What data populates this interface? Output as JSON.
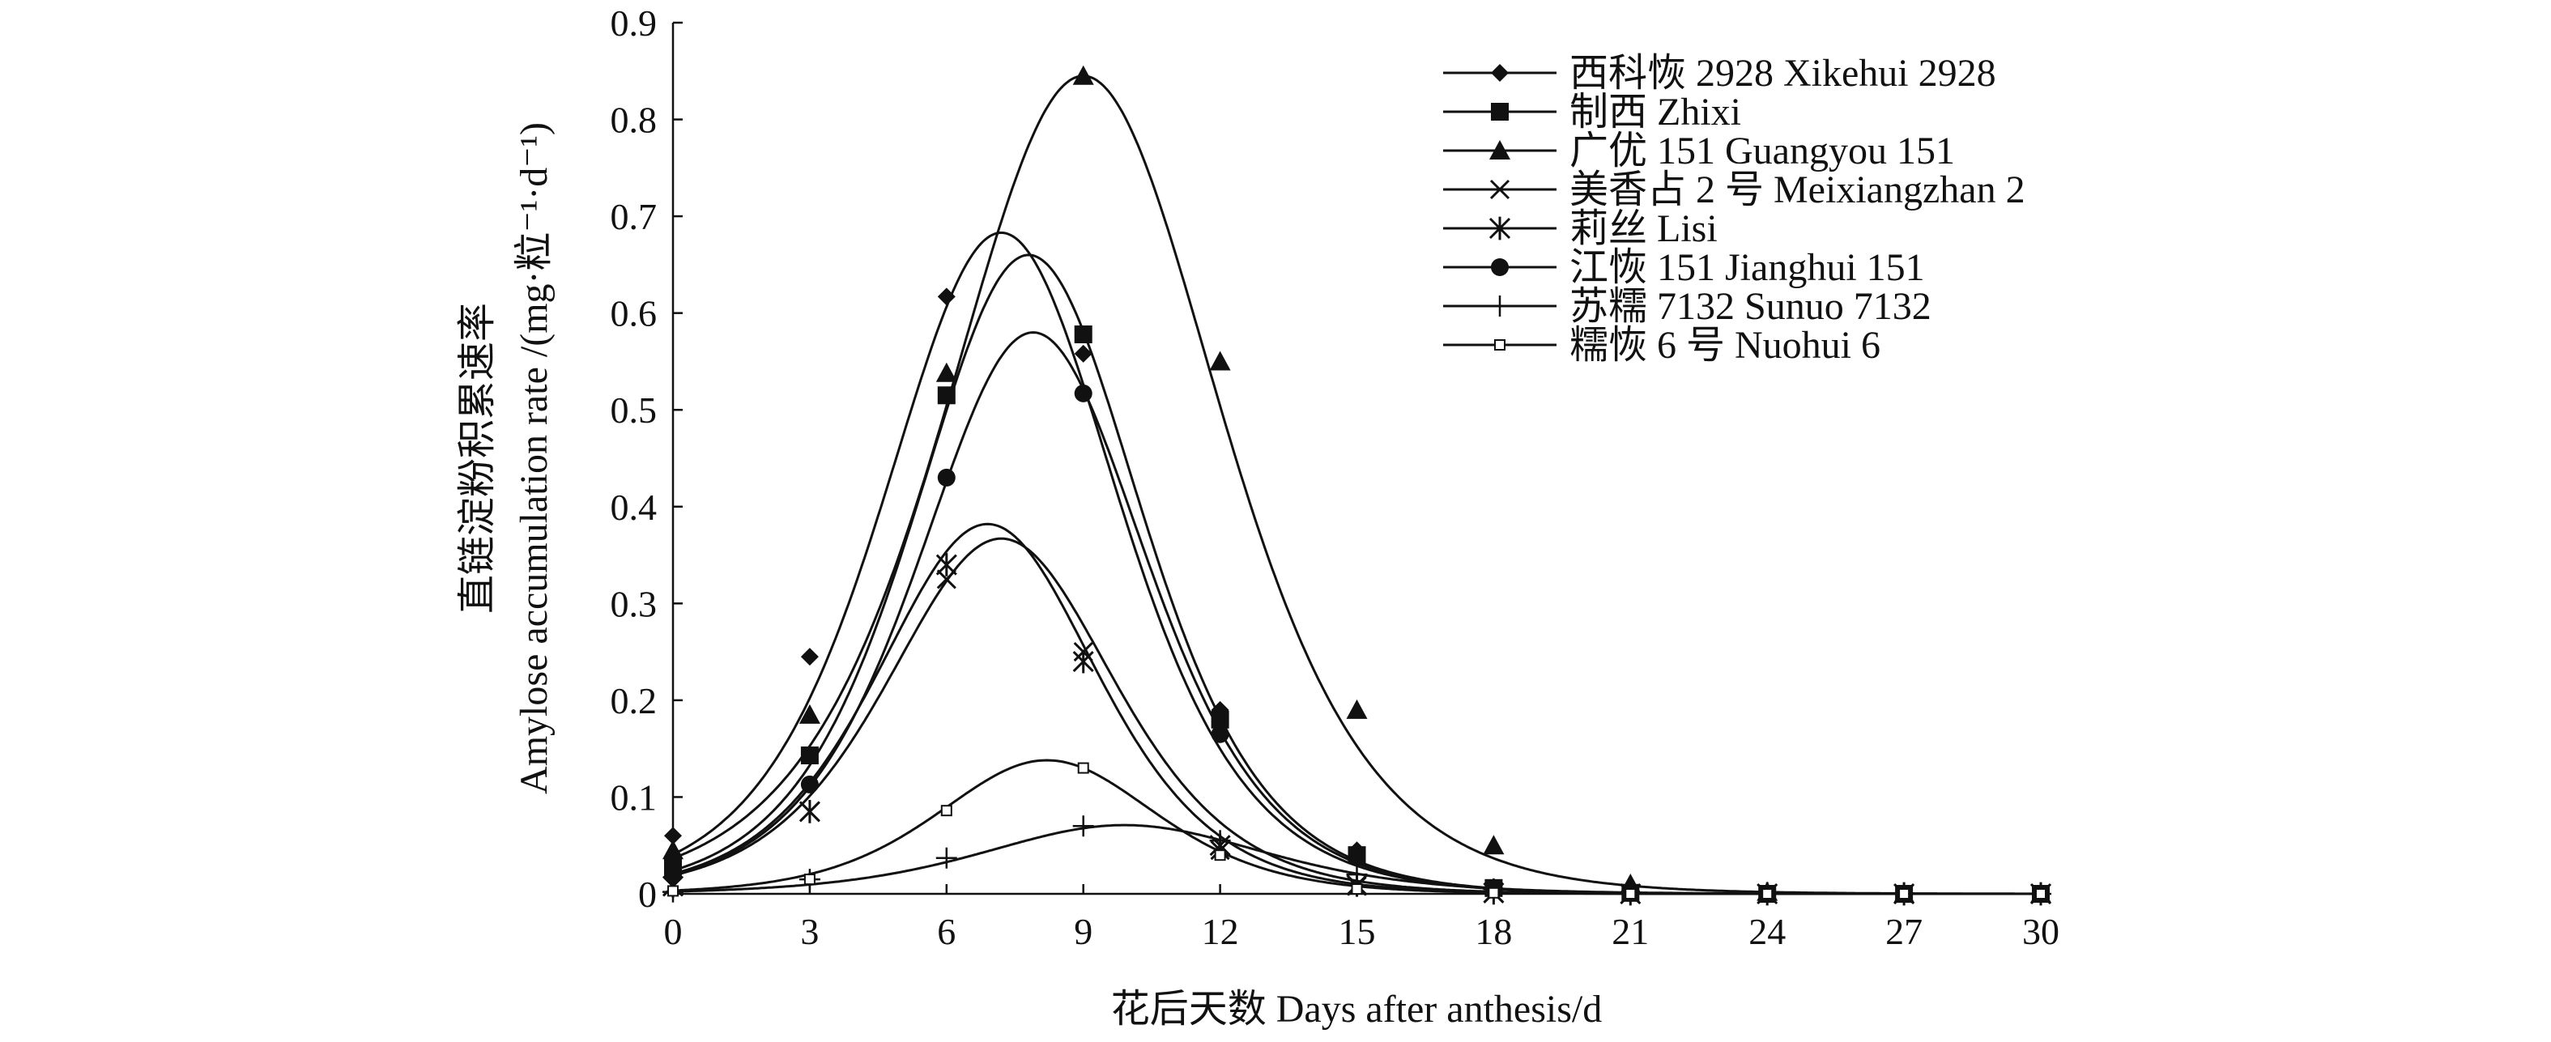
{
  "chart_data": {
    "type": "line",
    "xlabel": "花后天数 Days after anthesis/d",
    "ylabel_line1": "直链淀粉积累速率",
    "ylabel_line2": "Amylose accumulation rate /(mg·粒⁻¹·d⁻¹)",
    "xlim": [
      0,
      30
    ],
    "ylim": [
      0,
      0.9
    ],
    "xticks": [
      0,
      3,
      6,
      9,
      12,
      15,
      18,
      21,
      24,
      27,
      30
    ],
    "yticks": [
      0,
      0.1,
      0.2,
      0.3,
      0.4,
      0.5,
      0.6,
      0.7,
      0.8,
      0.9
    ],
    "ytick_labels": [
      "0",
      "0.1",
      "0.2",
      "0.3",
      "0.4",
      "0.5",
      "0.6",
      "0.7",
      "0.8",
      "0.9"
    ],
    "legend_position": "top-right",
    "series": [
      {
        "name": "西科恢 2928 Xikehui 2928",
        "marker": "diamond",
        "x": [
          0,
          3,
          6,
          9,
          12,
          15,
          18,
          21,
          24,
          27,
          30
        ],
        "y": [
          0.06,
          0.245,
          0.617,
          0.558,
          0.19,
          0.045,
          0.007,
          0.001,
          0,
          0,
          0
        ],
        "curve": {
          "peak": 0.683,
          "x0": 7.2,
          "k": 0.58
        }
      },
      {
        "name": "制西 Zhixi",
        "marker": "square",
        "x": [
          0,
          3,
          6,
          9,
          12,
          15,
          18,
          21,
          24,
          27,
          30
        ],
        "y": [
          0.03,
          0.143,
          0.515,
          0.578,
          0.18,
          0.04,
          0.006,
          0.001,
          0,
          0,
          0
        ],
        "curve": {
          "peak": 0.66,
          "x0": 7.8,
          "k": 0.6
        }
      },
      {
        "name": "广优 151 Guangyou 151",
        "marker": "triangle",
        "x": [
          0,
          3,
          6,
          9,
          12,
          15,
          18,
          21,
          24,
          27,
          30
        ],
        "y": [
          0.045,
          0.185,
          0.538,
          0.845,
          0.55,
          0.19,
          0.05,
          0.01,
          0.002,
          0,
          0
        ],
        "curve": {
          "peak": 0.845,
          "x0": 9.0,
          "k": 0.5
        }
      },
      {
        "name": "美香占 2 号 Meixiangzhan 2",
        "marker": "cross",
        "x": [
          0,
          3,
          6,
          9,
          12,
          15,
          18,
          21,
          24,
          27,
          30
        ],
        "y": [
          0.008,
          0.085,
          0.325,
          0.25,
          0.045,
          0.008,
          0.001,
          0,
          0,
          0,
          0
        ],
        "curve": {
          "peak": 0.382,
          "x0": 6.9,
          "k": 0.62
        }
      },
      {
        "name": "莉丝 Lisi",
        "marker": "asterisk",
        "x": [
          0,
          3,
          6,
          9,
          12,
          15,
          18,
          21,
          24,
          27,
          30
        ],
        "y": [
          0.008,
          0.085,
          0.34,
          0.24,
          0.05,
          0.009,
          0.001,
          0,
          0,
          0,
          0
        ],
        "curve": {
          "peak": 0.367,
          "x0": 7.2,
          "k": 0.6
        }
      },
      {
        "name": "江恢 151 Jianghui 151",
        "marker": "circle",
        "x": [
          0,
          3,
          6,
          9,
          12,
          15,
          18,
          21,
          24,
          27,
          30
        ],
        "y": [
          0.02,
          0.113,
          0.43,
          0.517,
          0.165,
          0.038,
          0.006,
          0.001,
          0,
          0,
          0
        ],
        "curve": {
          "peak": 0.58,
          "x0": 7.9,
          "k": 0.6
        }
      },
      {
        "name": "苏糯 7132 Sunuo 7132",
        "marker": "plus",
        "x": [
          0,
          3,
          6,
          9,
          12,
          15,
          18,
          21,
          24,
          27,
          30
        ],
        "y": [
          0.002,
          0.015,
          0.037,
          0.07,
          0.055,
          0.02,
          0.005,
          0.001,
          0,
          0,
          0
        ],
        "curve": {
          "peak": 0.071,
          "x0": 9.9,
          "k": 0.48
        }
      },
      {
        "name": "糯恢 6 号 Nuohui 6",
        "marker": "small-square",
        "x": [
          0,
          3,
          6,
          9,
          12,
          15,
          18,
          21,
          24,
          27,
          30
        ],
        "y": [
          0.003,
          0.015,
          0.086,
          0.13,
          0.04,
          0.005,
          0.001,
          0,
          0,
          0,
          0
        ],
        "curve": {
          "peak": 0.138,
          "x0": 8.2,
          "k": 0.62
        }
      }
    ]
  }
}
